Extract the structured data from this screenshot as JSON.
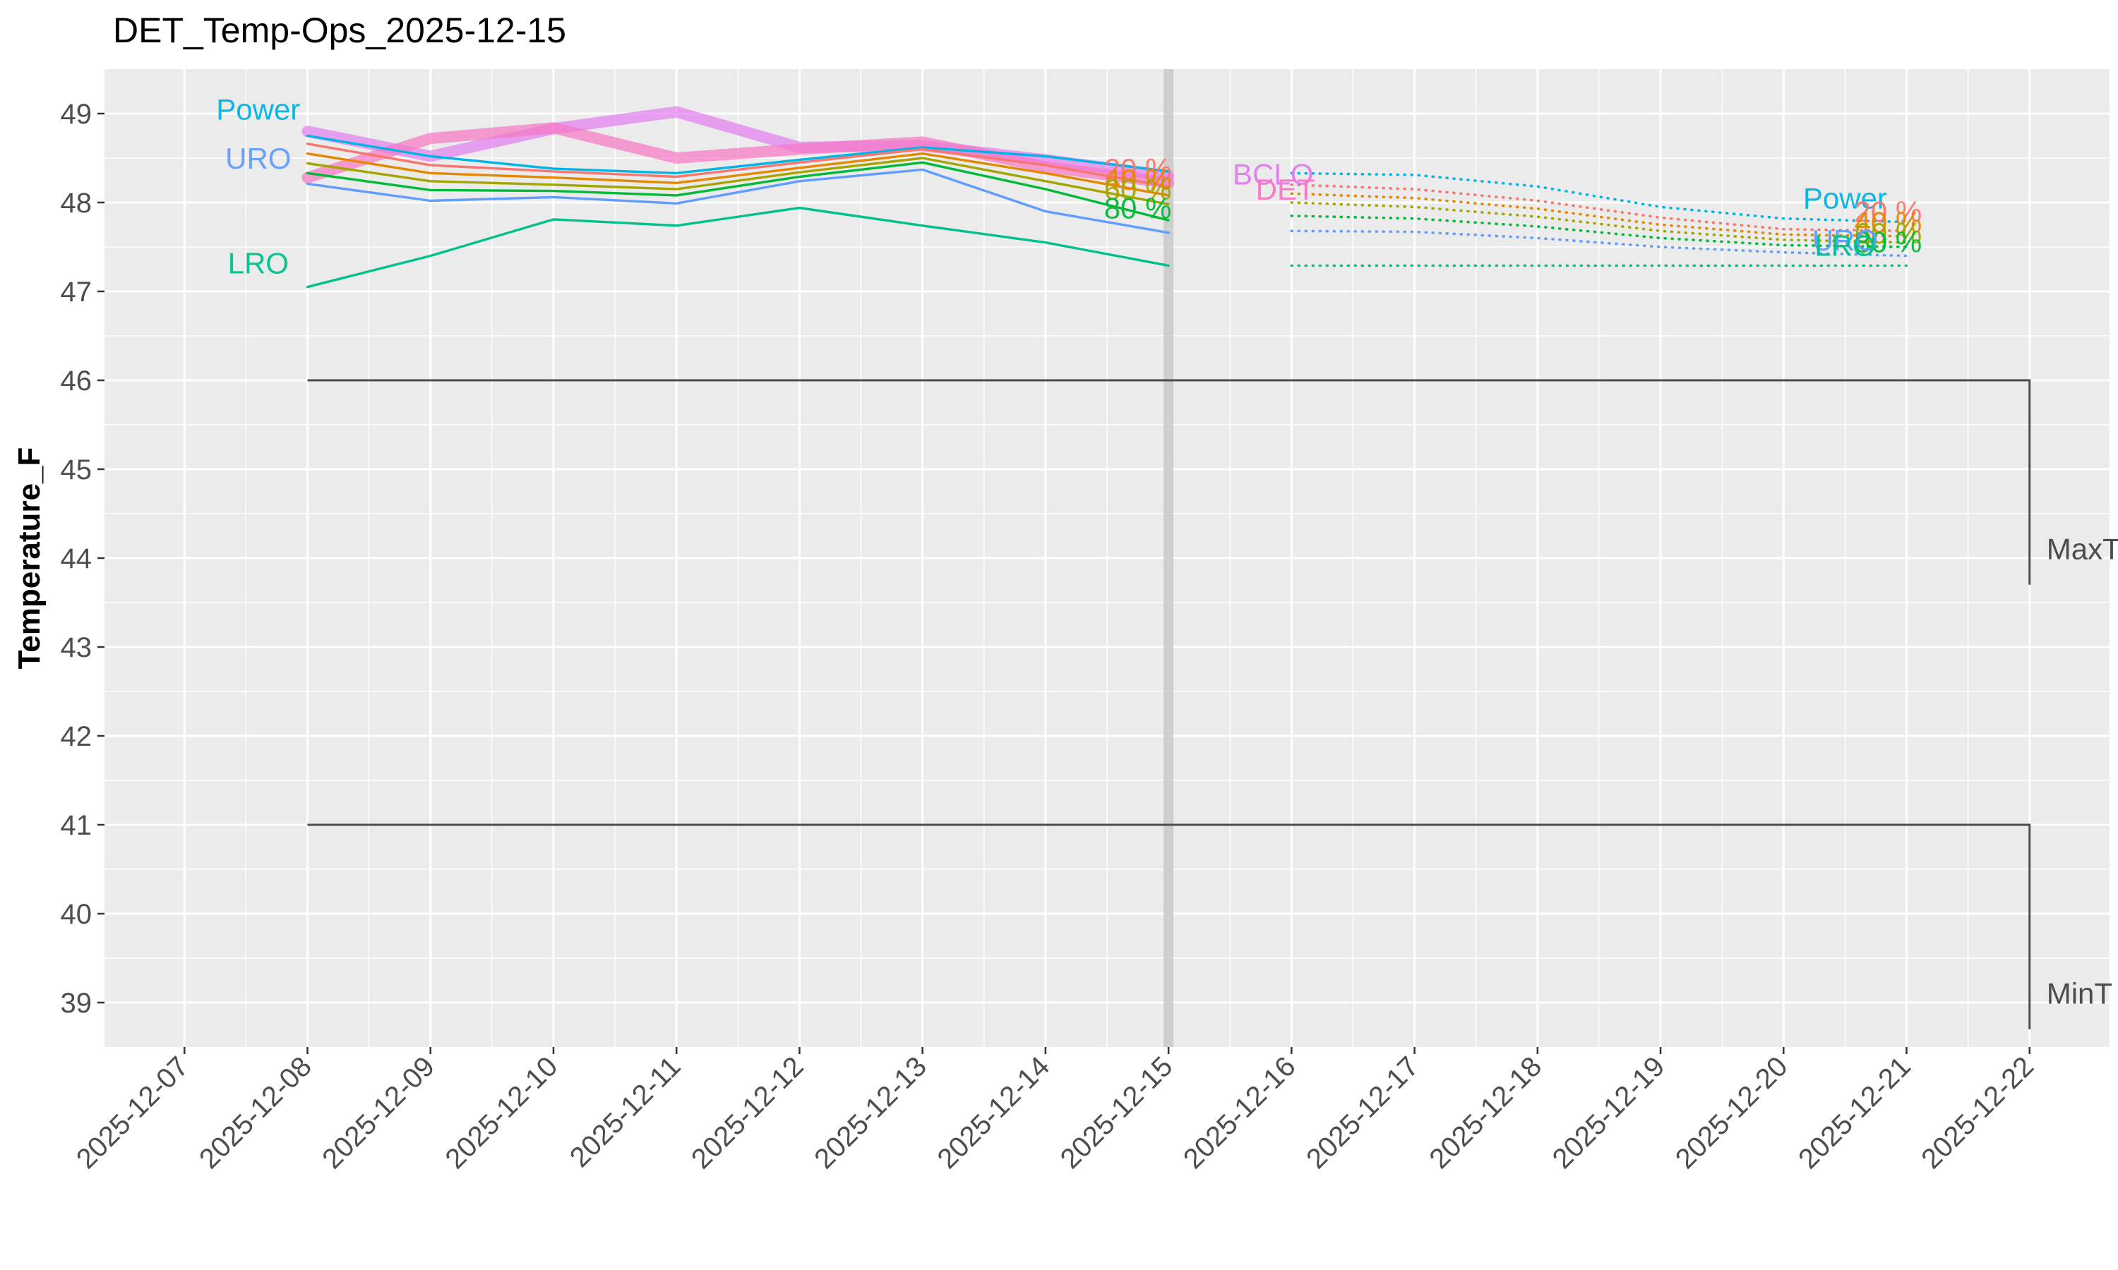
{
  "chart_data": {
    "type": "line",
    "title": "DET_Temp-Ops_2025-12-15",
    "xlabel": "",
    "ylabel": "Temperature_F",
    "ylim": [
      38.5,
      49.5
    ],
    "yticks": [
      39,
      40,
      41,
      42,
      43,
      44,
      45,
      46,
      47,
      48,
      49
    ],
    "xlim": [
      "2025-12-07",
      "2025-12-22"
    ],
    "xticks": [
      "2025-12-07",
      "2025-12-08",
      "2025-12-09",
      "2025-12-10",
      "2025-12-11",
      "2025-12-12",
      "2025-12-13",
      "2025-12-14",
      "2025-12-15",
      "2025-12-16",
      "2025-12-17",
      "2025-12-18",
      "2025-12-19",
      "2025-12-20",
      "2025-12-21",
      "2025-12-22"
    ],
    "grid": true,
    "forecast_start": "2025-12-15",
    "series": [
      {
        "name": "Power",
        "color": "#00b4e6",
        "style": "solid",
        "x": [
          "2025-12-08",
          "2025-12-09",
          "2025-12-10",
          "2025-12-11",
          "2025-12-12",
          "2025-12-13",
          "2025-12-14",
          "2025-12-15"
        ],
        "values": [
          48.75,
          48.52,
          48.38,
          48.33,
          48.48,
          48.62,
          48.52,
          48.35
        ]
      },
      {
        "name": "20 %",
        "color": "#f8766d",
        "style": "solid",
        "x": [
          "2025-12-08",
          "2025-12-09",
          "2025-12-10",
          "2025-12-11",
          "2025-12-12",
          "2025-12-13",
          "2025-12-14",
          "2025-12-15"
        ],
        "values": [
          48.66,
          48.42,
          48.35,
          48.29,
          48.45,
          48.6,
          48.42,
          48.18
        ]
      },
      {
        "name": "40 %",
        "color": "#e58700",
        "style": "solid",
        "x": [
          "2025-12-08",
          "2025-12-09",
          "2025-12-10",
          "2025-12-11",
          "2025-12-12",
          "2025-12-13",
          "2025-12-14",
          "2025-12-15"
        ],
        "values": [
          48.55,
          48.33,
          48.28,
          48.22,
          48.39,
          48.55,
          48.33,
          48.08
        ]
      },
      {
        "name": "60 %",
        "color": "#a3a500",
        "style": "solid",
        "x": [
          "2025-12-08",
          "2025-12-09",
          "2025-12-10",
          "2025-12-11",
          "2025-12-12",
          "2025-12-13",
          "2025-12-14",
          "2025-12-15"
        ],
        "values": [
          48.44,
          48.24,
          48.2,
          48.15,
          48.34,
          48.5,
          48.24,
          47.98
        ]
      },
      {
        "name": "80 %",
        "color": "#00ba38",
        "style": "solid",
        "x": [
          "2025-12-08",
          "2025-12-09",
          "2025-12-10",
          "2025-12-11",
          "2025-12-12",
          "2025-12-13",
          "2025-12-14",
          "2025-12-15"
        ],
        "values": [
          48.33,
          48.14,
          48.13,
          48.08,
          48.29,
          48.45,
          48.15,
          47.8
        ]
      },
      {
        "name": "URO",
        "color": "#619cff",
        "style": "solid",
        "x": [
          "2025-12-08",
          "2025-12-09",
          "2025-12-10",
          "2025-12-11",
          "2025-12-12",
          "2025-12-13",
          "2025-12-14",
          "2025-12-15"
        ],
        "values": [
          48.21,
          48.02,
          48.06,
          47.99,
          48.24,
          48.37,
          47.9,
          47.66
        ]
      },
      {
        "name": "LRO",
        "color": "#00c08b",
        "style": "solid",
        "x": [
          "2025-12-08",
          "2025-12-09",
          "2025-12-10",
          "2025-12-11",
          "2025-12-12",
          "2025-12-13",
          "2025-12-14",
          "2025-12-15"
        ],
        "values": [
          47.05,
          47.4,
          47.81,
          47.74,
          47.94,
          47.74,
          47.55,
          47.29
        ]
      },
      {
        "name": "BCLO",
        "color": "#e27cf0",
        "style": "thick",
        "x": [
          "2025-12-08",
          "2025-12-09",
          "2025-12-10",
          "2025-12-11",
          "2025-12-12",
          "2025-12-13",
          "2025-12-14",
          "2025-12-15"
        ],
        "values": [
          48.8,
          48.52,
          48.83,
          49.02,
          48.62,
          48.64,
          48.48,
          48.3
        ]
      },
      {
        "name": "DET",
        "color": "#f776c5",
        "style": "thick",
        "x": [
          "2025-12-08",
          "2025-12-09",
          "2025-12-10",
          "2025-12-11",
          "2025-12-12",
          "2025-12-13",
          "2025-12-14",
          "2025-12-15"
        ],
        "values": [
          48.28,
          48.72,
          48.84,
          48.5,
          48.6,
          48.68,
          48.4,
          48.22
        ]
      },
      {
        "name": "Power",
        "color": "#00b4e6",
        "style": "dotted",
        "x": [
          "2025-12-16",
          "2025-12-17",
          "2025-12-18",
          "2025-12-19",
          "2025-12-20",
          "2025-12-21"
        ],
        "values": [
          48.33,
          48.31,
          48.18,
          47.95,
          47.82,
          47.78
        ]
      },
      {
        "name": "20 %",
        "color": "#f8766d",
        "style": "dotted",
        "x": [
          "2025-12-16",
          "2025-12-17",
          "2025-12-18",
          "2025-12-19",
          "2025-12-20",
          "2025-12-21"
        ],
        "values": [
          48.2,
          48.15,
          48.02,
          47.83,
          47.7,
          47.68
        ]
      },
      {
        "name": "40 %",
        "color": "#e58700",
        "style": "dotted",
        "x": [
          "2025-12-16",
          "2025-12-17",
          "2025-12-18",
          "2025-12-19",
          "2025-12-20",
          "2025-12-21"
        ],
        "values": [
          48.1,
          48.05,
          47.93,
          47.75,
          47.64,
          47.62
        ]
      },
      {
        "name": "60 %",
        "color": "#a3a500",
        "style": "dotted",
        "x": [
          "2025-12-16",
          "2025-12-17",
          "2025-12-18",
          "2025-12-19",
          "2025-12-20",
          "2025-12-21"
        ],
        "values": [
          48.0,
          47.95,
          47.84,
          47.68,
          47.58,
          47.55
        ]
      },
      {
        "name": "80 %",
        "color": "#00ba38",
        "style": "dotted",
        "x": [
          "2025-12-16",
          "2025-12-17",
          "2025-12-18",
          "2025-12-19",
          "2025-12-20",
          "2025-12-21"
        ],
        "values": [
          47.85,
          47.82,
          47.73,
          47.6,
          47.52,
          47.5
        ]
      },
      {
        "name": "URO",
        "color": "#619cff",
        "style": "dotted",
        "x": [
          "2025-12-16",
          "2025-12-17",
          "2025-12-18",
          "2025-12-19",
          "2025-12-20",
          "2025-12-21"
        ],
        "values": [
          47.68,
          47.67,
          47.6,
          47.5,
          47.44,
          47.4
        ]
      },
      {
        "name": "LRO",
        "color": "#00c08b",
        "style": "dotted",
        "x": [
          "2025-12-16",
          "2025-12-17",
          "2025-12-18",
          "2025-12-19",
          "2025-12-20",
          "2025-12-21"
        ],
        "values": [
          47.29,
          47.29,
          47.29,
          47.29,
          47.29,
          47.29
        ]
      }
    ],
    "thresholds": [
      {
        "label": "MaxT",
        "value": 46,
        "color": "#4d4d4d"
      },
      {
        "label": "MinT",
        "value": 41,
        "color": "#4d4d4d"
      }
    ],
    "annotations": [
      {
        "text": "Power",
        "color": "#00b4e6",
        "x": "2025-12-07.6",
        "y": 49.05
      },
      {
        "text": "URO",
        "color": "#619cff",
        "x": "2025-12-07.6",
        "y": 48.5
      },
      {
        "text": "LRO",
        "color": "#00c08b",
        "x": "2025-12-07.6",
        "y": 47.32
      },
      {
        "text": "20 %",
        "color": "#f8766d",
        "x": "2025-12-14.75",
        "y": 48.38
      },
      {
        "text": "40 %",
        "color": "#e58700",
        "x": "2025-12-14.75",
        "y": 48.26
      },
      {
        "text": "60 %",
        "color": "#a3a500",
        "x": "2025-12-14.75",
        "y": 48.15
      },
      {
        "text": "80 %",
        "color": "#00ba38",
        "x": "2025-12-14.75",
        "y": 47.94
      },
      {
        "text": "BCLO",
        "color": "#e27cf0",
        "x": "2025-12-15.85",
        "y": 48.32
      },
      {
        "text": "DET",
        "color": "#f776c5",
        "x": "2025-12-15.95",
        "y": 48.15
      },
      {
        "text": "Power",
        "color": "#00b4e6",
        "x": "2025-12-20.5",
        "y": 48.05
      },
      {
        "text": "20 %",
        "color": "#f8766d",
        "x": "2025-12-20.85",
        "y": 47.9
      },
      {
        "text": "40 %",
        "color": "#e58700",
        "x": "2025-12-20.85",
        "y": 47.78
      },
      {
        "text": "60 %",
        "color": "#a3a500",
        "x": "2025-12-20.85",
        "y": 47.66
      },
      {
        "text": "80 %",
        "color": "#00ba38",
        "x": "2025-12-20.85",
        "y": 47.56
      },
      {
        "text": "URO",
        "color": "#619cff",
        "x": "2025-12-20.5",
        "y": 47.58
      },
      {
        "text": "LRO",
        "color": "#00c08b",
        "x": "2025-12-20.5",
        "y": 47.52
      }
    ]
  }
}
